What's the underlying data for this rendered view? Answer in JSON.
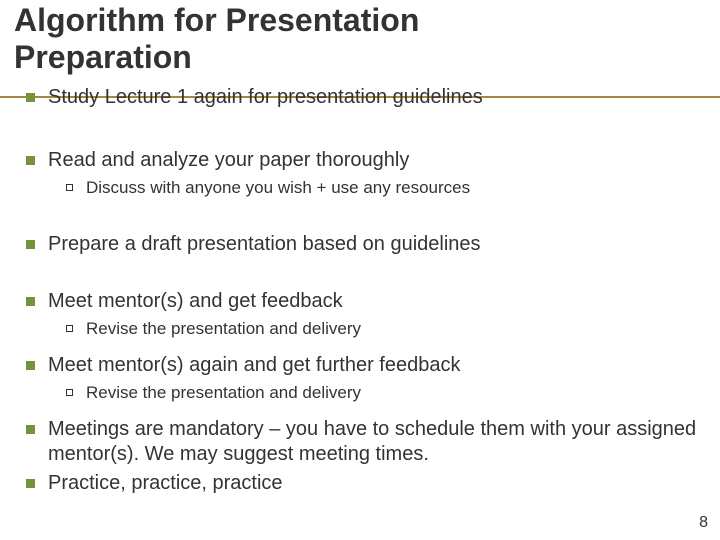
{
  "colors": {
    "bullet_square": "#74933b",
    "underline": "#a4873c",
    "text": "#333333",
    "background": "#ffffff"
  },
  "typography": {
    "title_fontsize": 32,
    "body_fontsize": 20,
    "sub_fontsize": 17,
    "pagenum_fontsize": 16,
    "font_family": "Verdana"
  },
  "title": {
    "line1": "Algorithm for Presentation",
    "line2": "Preparation"
  },
  "items": [
    {
      "text": "Study Lecture 1 again for presentation guidelines"
    },
    {
      "text": "Read and analyze your paper thoroughly",
      "sub": [
        "Discuss with anyone you wish + use any resources"
      ]
    },
    {
      "text": "Prepare a draft presentation based on guidelines"
    },
    {
      "text": "Meet mentor(s) and get feedback",
      "sub": [
        "Revise the presentation and delivery"
      ]
    },
    {
      "text": "Meet mentor(s) again and get further feedback",
      "sub": [
        "Revise the presentation and delivery"
      ]
    },
    {
      "text": "Meetings are mandatory – you have to schedule them with your assigned mentor(s). We may suggest meeting times."
    },
    {
      "text": "Practice, practice, practice"
    }
  ],
  "page_number": "8"
}
